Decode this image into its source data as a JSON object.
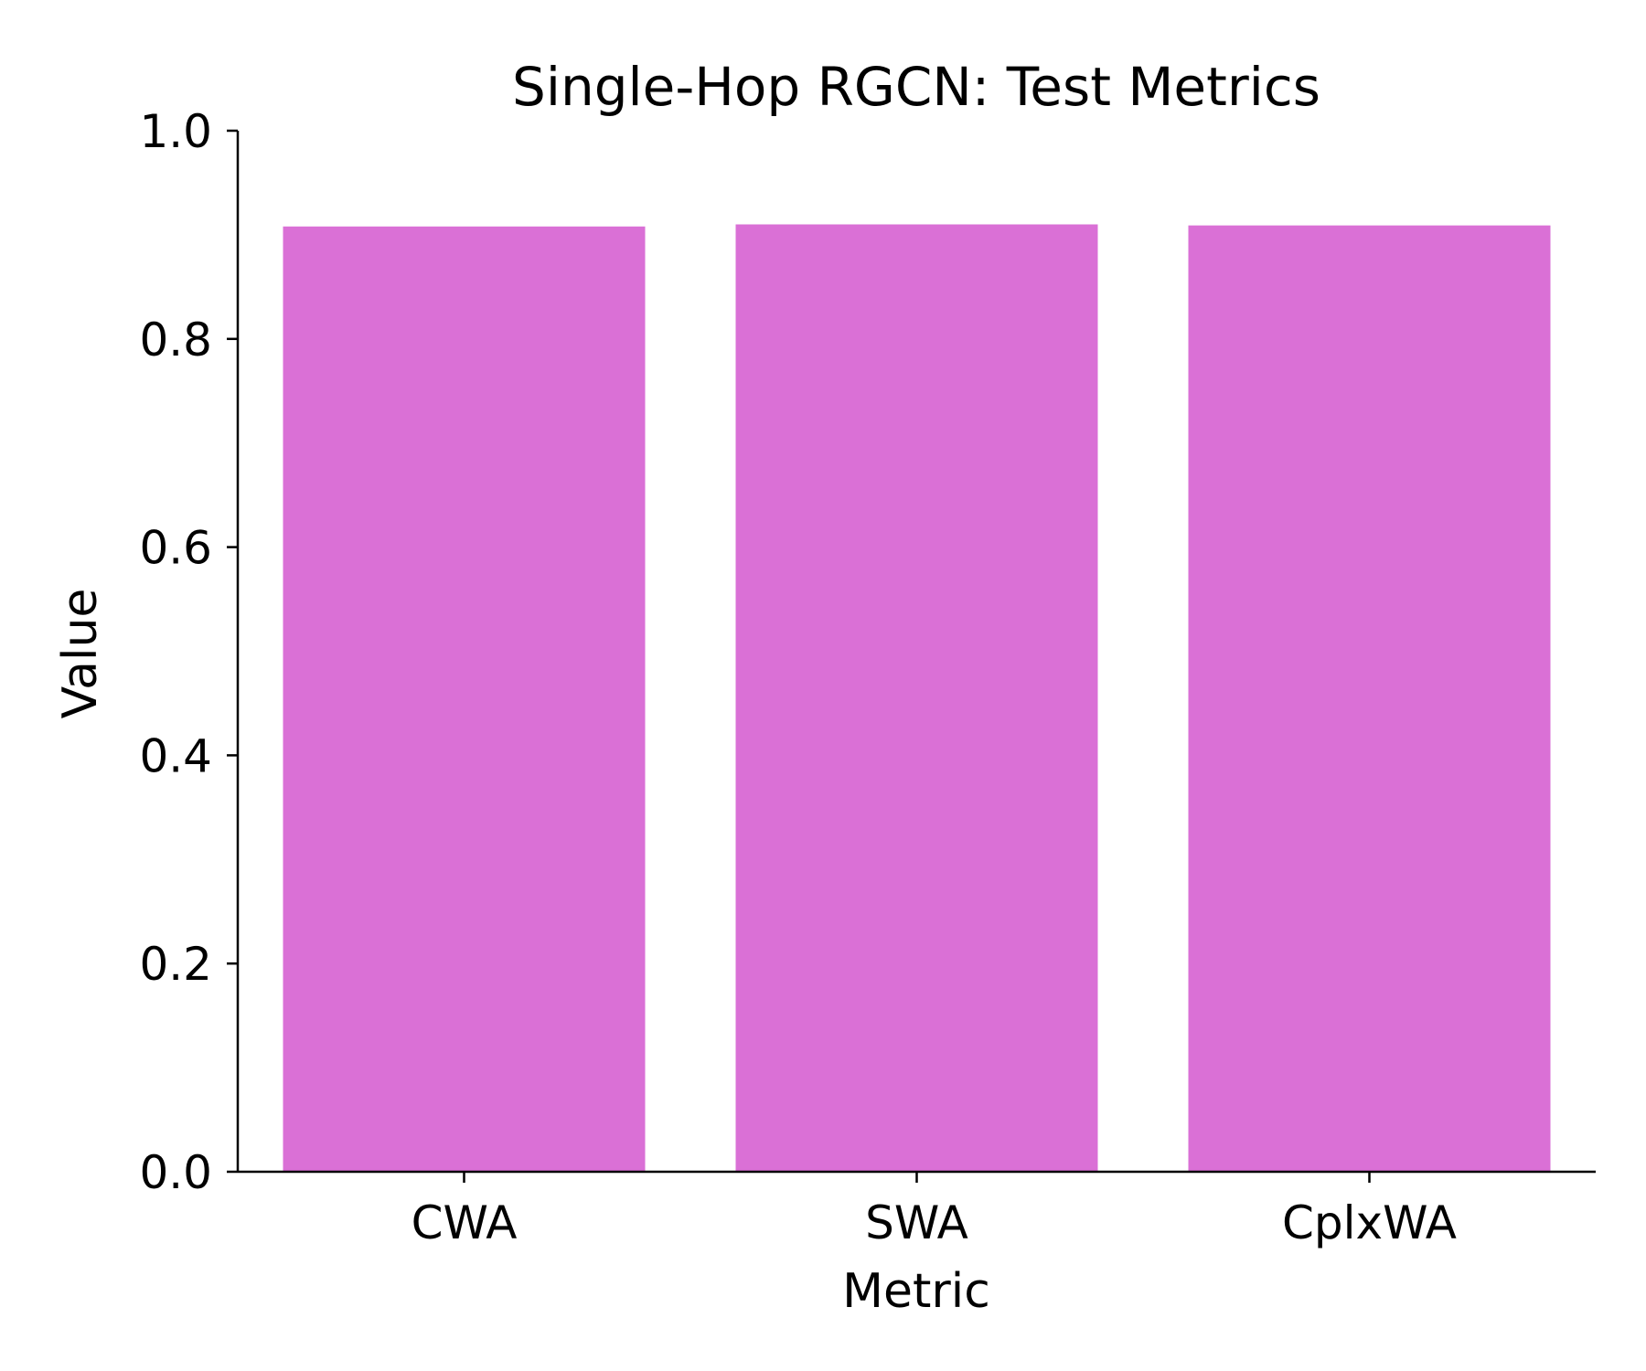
{
  "chart_data": {
    "type": "bar",
    "title": "Single-Hop RGCN: Test Metrics",
    "xlabel": "Metric",
    "ylabel": "Value",
    "categories": [
      "CWA",
      "SWA",
      "CplxWA"
    ],
    "values": [
      0.908,
      0.91,
      0.909
    ],
    "ylim": [
      0,
      1.0
    ],
    "yticks": [
      "0.0",
      "0.2",
      "0.4",
      "0.6",
      "0.8",
      "1.0"
    ],
    "bar_color": "#DA70D6",
    "grid": false,
    "legend": "none"
  }
}
